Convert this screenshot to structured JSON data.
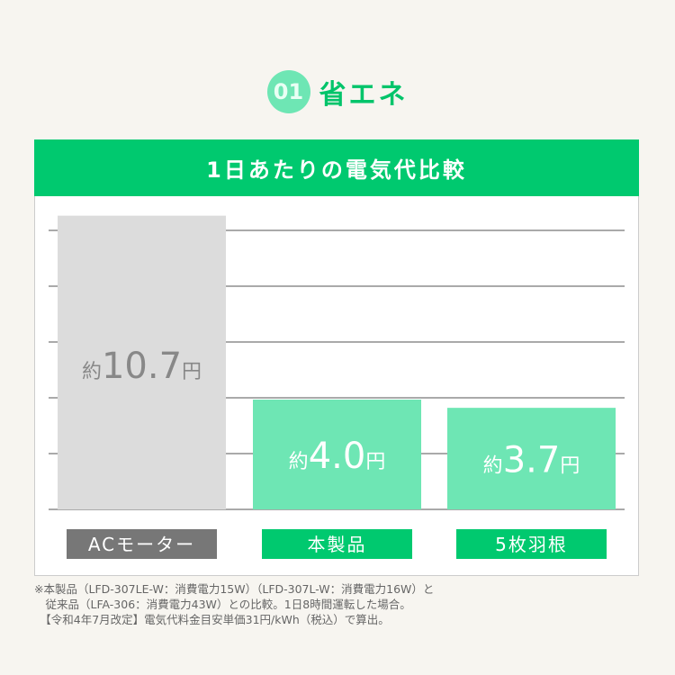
{
  "badge": "01",
  "title": "省エネ",
  "chart_data": {
    "type": "bar",
    "title": "1日あたりの電気代比較",
    "categories": [
      "ACモーター",
      "本製品",
      "5枚羽根"
    ],
    "values": [
      10.7,
      4.0,
      3.7
    ],
    "value_labels": [
      {
        "prefix": "約",
        "number": "10.7",
        "unit": "円"
      },
      {
        "prefix": "約",
        "number": "4.0",
        "unit": "円"
      },
      {
        "prefix": "約",
        "number": "3.7",
        "unit": "円"
      }
    ],
    "grid": true,
    "colors": {
      "bars": [
        "#dcdcdc",
        "#6ee6b4",
        "#6ee6b4"
      ],
      "category_boxes": [
        "#777777",
        "#00c96f",
        "#00c96f"
      ],
      "header": "#00c96f"
    }
  },
  "footnotes": [
    "※本製品（LFD-307LE-W：消費電力15W）（LFD-307L-W：消費電力16W）と",
    "　従来品（LFA-306：消費電力43W）との比較。1日8時間運転した場合。",
    "　【令和4年7月改定】電気代料金目安単価31円/kWh（税込）で算出。"
  ]
}
